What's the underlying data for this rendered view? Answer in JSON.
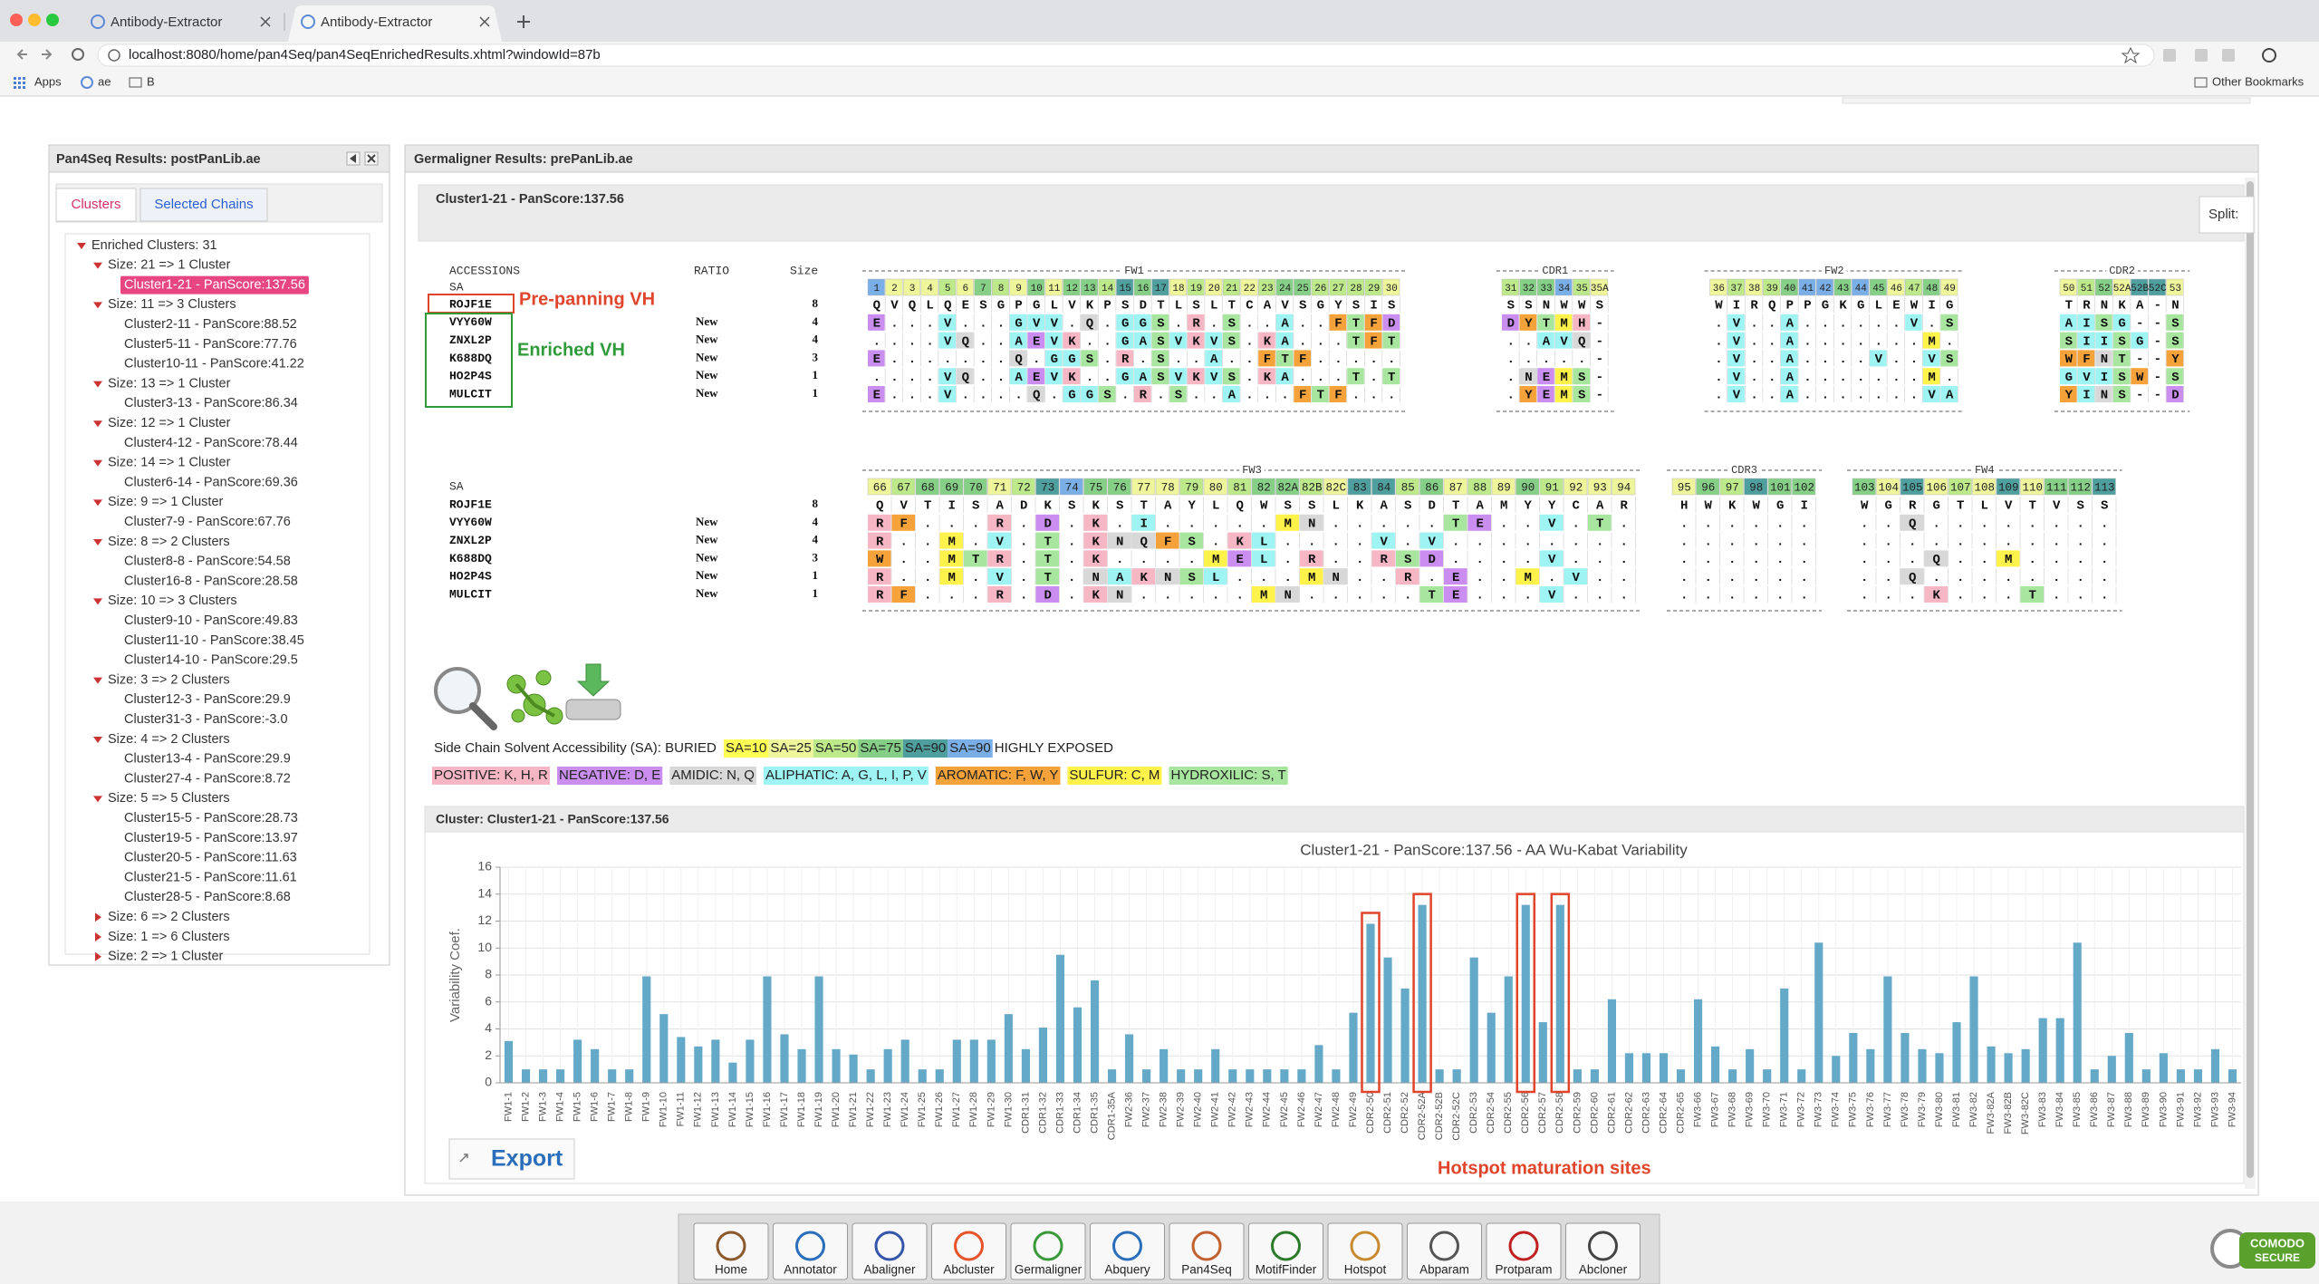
{
  "browser": {
    "tabs": [
      "Antibody-Extractor",
      "Antibody-Extractor"
    ],
    "url": "localhost:8080/home/pan4Seq/pan4SeqEnrichedResults.xhtml?windowId=87b",
    "bookmarks": [
      "Apps",
      "ae",
      "B"
    ],
    "other_bookmarks": "Other Bookmarks"
  },
  "left_panel": {
    "title": "Pan4Seq Results: postPanLib.ae",
    "tabs": [
      "Clusters",
      "Selected Chains"
    ],
    "tree": {
      "root": "Enriched Clusters: 31",
      "groups": [
        {
          "label": "Size: 21 => 1 Cluster",
          "children": [
            "Cluster1-21 - PanScore:137.56"
          ]
        },
        {
          "label": "Size: 11 => 3 Clusters",
          "children": [
            "Cluster2-11 - PanScore:88.52",
            "Cluster5-11 - PanScore:77.76",
            "Cluster10-11 - PanScore:41.22"
          ]
        },
        {
          "label": "Size: 13 => 1 Cluster",
          "children": [
            "Cluster3-13 - PanScore:86.34"
          ]
        },
        {
          "label": "Size: 12 => 1 Cluster",
          "children": [
            "Cluster4-12 - PanScore:78.44"
          ]
        },
        {
          "label": "Size: 14 => 1 Cluster",
          "children": [
            "Cluster6-14 - PanScore:69.36"
          ]
        },
        {
          "label": "Size: 9 => 1 Cluster",
          "children": [
            "Cluster7-9 - PanScore:67.76"
          ]
        },
        {
          "label": "Size: 8 => 2 Clusters",
          "children": [
            "Cluster8-8 - PanScore:54.58",
            "Cluster16-8 - PanScore:28.58"
          ]
        },
        {
          "label": "Size: 10 => 3 Clusters",
          "children": [
            "Cluster9-10 - PanScore:49.83",
            "Cluster11-10 - PanScore:38.45",
            "Cluster14-10 - PanScore:29.5"
          ]
        },
        {
          "label": "Size: 3 => 2 Clusters",
          "children": [
            "Cluster12-3 - PanScore:29.9",
            "Cluster31-3 - PanScore:-3.0"
          ]
        },
        {
          "label": "Size: 4 => 2 Clusters",
          "children": [
            "Cluster13-4 - PanScore:29.9",
            "Cluster27-4 - PanScore:8.72"
          ]
        },
        {
          "label": "Size: 5 => 5 Clusters",
          "children": [
            "Cluster15-5 - PanScore:28.73",
            "Cluster19-5 - PanScore:13.97",
            "Cluster20-5 - PanScore:11.63",
            "Cluster21-5 - PanScore:11.61",
            "Cluster28-5 - PanScore:8.68"
          ]
        },
        {
          "label": "Size: 6 => 2 Clusters",
          "children": []
        },
        {
          "label": "Size: 1 => 6 Clusters",
          "children": []
        },
        {
          "label": "Size: 2 => 1 Cluster",
          "children": []
        }
      ]
    }
  },
  "right_panel": {
    "title": "Germaligner Results: prePanLib.ae",
    "cluster_title": "Cluster1-21 - PanScore:137.56",
    "split": "Split:",
    "alignment": {
      "headers": [
        "ACCESSIONS",
        "RATIO",
        "Size"
      ],
      "sa_label": "SA",
      "blocks": [
        {
          "regions": [
            {
              "name": "FW1",
              "positions": [
                1,
                2,
                3,
                4,
                5,
                6,
                7,
                8,
                9,
                10,
                11,
                12,
                13,
                14,
                15,
                16,
                17,
                18,
                19,
                20,
                21,
                22,
                23,
                24,
                25,
                26,
                27,
                28,
                29,
                30
              ]
            },
            {
              "name": "CDR1",
              "positions": [
                31,
                32,
                33,
                34,
                35,
                "35A"
              ]
            },
            {
              "name": "FW2",
              "positions": [
                36,
                37,
                38,
                39,
                40,
                41,
                42,
                43,
                44,
                45,
                46,
                47,
                48,
                49
              ]
            },
            {
              "name": "CDR2",
              "positions": [
                50,
                51,
                52,
                "52A",
                "52B",
                "52C",
                53
              ]
            }
          ],
          "sa": [
            5,
            1,
            1,
            1,
            2,
            1,
            3,
            2,
            1,
            3,
            1,
            3,
            3,
            2,
            4,
            3,
            4,
            1,
            2,
            1,
            2,
            1,
            2,
            3,
            3,
            2,
            2,
            2,
            2,
            1,
            2,
            3,
            3,
            5,
            2,
            1,
            1,
            2,
            1,
            2,
            3,
            5,
            5,
            3,
            5,
            3,
            1,
            2,
            3,
            1,
            1,
            2,
            3,
            1,
            4,
            4,
            1
          ],
          "rows": [
            {
              "accession": "ROJF1E",
              "size": 8,
              "segments": [
                "QVQLQESGPGLVKPSDTLSLTCAVSGYSIS",
                "SSNWWS",
                "WIRQPPGKGLEWIG",
                "TRNKA-N"
              ]
            },
            {
              "accession": "VYY60W",
              "ratio": "New",
              "size": 4,
              "segments": [
                "E...V...GVV.Q.GGS.R.S..A..FTFD",
                "DYTMH-",
                ".V..A......V.S",
                "AISG--S"
              ]
            },
            {
              "accession": "ZNXL2P",
              "ratio": "New",
              "size": 4,
              "segments": [
                "....VQ..AEVK..GASVKVS.KA...TFT",
                "..AVQ-",
                ".V..A.......M.",
                "SIISG-S"
              ]
            },
            {
              "accession": "K688DQ",
              "ratio": "New",
              "size": 3,
              "segments": [
                "E.......Q.GGS.R.S..A..FTF.....",
                ".....-",
                ".V..A....V..VS",
                "WFNT--Y"
              ]
            },
            {
              "accession": "HO2P4S",
              "ratio": "New",
              "size": 1,
              "segments": [
                "....VQ..AEVK..GASVKVS.KA...T.T",
                ".NEMS-",
                ".V..A.......M.",
                "GVISW-S"
              ]
            },
            {
              "accession": "MULCIT",
              "ratio": "New",
              "size": 1,
              "segments": [
                "E...V....Q.GGS.R.S..A...FTF...",
                ".YEMS-",
                ".V..A.......VA",
                "YINS--D"
              ]
            }
          ]
        },
        {
          "regions": [
            {
              "name": "FW3",
              "positions": [
                66,
                67,
                68,
                69,
                70,
                71,
                72,
                73,
                74,
                75,
                76,
                77,
                78,
                79,
                80,
                81,
                82,
                "82A",
                "82B",
                "82C",
                83,
                84,
                85,
                86,
                87,
                88,
                89,
                90,
                91,
                92,
                93,
                94
              ]
            },
            {
              "name": "CDR3",
              "positions": [
                95,
                96,
                97,
                98,
                101,
                102
              ]
            },
            {
              "name": "FW4",
              "positions": [
                103,
                104,
                105,
                106,
                107,
                108,
                109,
                110,
                111,
                112,
                113
              ]
            }
          ],
          "sa": [
            1,
            2,
            3,
            3,
            3,
            1,
            2,
            4,
            5,
            3,
            3,
            1,
            1,
            2,
            1,
            2,
            3,
            3,
            2,
            1,
            4,
            4,
            2,
            3,
            1,
            2,
            1,
            3,
            2,
            1,
            1,
            1,
            1,
            3,
            2,
            4,
            3,
            3,
            3,
            1,
            4,
            1,
            2,
            1,
            4,
            1,
            3,
            3,
            4
          ],
          "rows": [
            {
              "accession": "ROJF1E",
              "size": 8,
              "segments": [
                "QVTISADKSKSTAYLQWSSLKASDTAMYYCAR",
                "HWKWGI",
                "WGRGTLVTVSS"
              ]
            },
            {
              "accession": "VYY60W",
              "ratio": "New",
              "size": 4,
              "segments": [
                "RF...R.D.K.I.....MN.....TE..V.T.",
                "......",
                "..Q........"
              ]
            },
            {
              "accession": "ZNXL2P",
              "ratio": "New",
              "size": 4,
              "segments": [
                "R..M.V.T.KNQFS.KL....V.V........",
                "......",
                "..........."
              ]
            },
            {
              "accession": "K688DQ",
              "ratio": "New",
              "size": 3,
              "segments": [
                "W..MTR.T.K....MEL.R..RSD....V...",
                "......",
                "...Q..M...."
              ]
            },
            {
              "accession": "HO2P4S",
              "ratio": "New",
              "size": 1,
              "segments": [
                "R..M.V.T.NAKNSL...MN..R.E..M.V..",
                "......",
                "..Q........"
              ]
            },
            {
              "accession": "MULCIT",
              "ratio": "New",
              "size": 1,
              "segments": [
                "RF...R.D.KN.....MN.....TE...V...",
                "......",
                "...K...T..."
              ]
            }
          ]
        }
      ],
      "annotations": {
        "pre_panning": "Pre-panning VH",
        "enriched": "Enriched VH"
      }
    },
    "sa_legend": {
      "prefix": "Side Chain Solvent Accessibility (SA): BURIED",
      "levels": [
        {
          "label": "SA=10",
          "color": "#ffff55"
        },
        {
          "label": "SA=25",
          "color": "#eef59a"
        },
        {
          "label": "SA=50",
          "color": "#bde98a"
        },
        {
          "label": "SA=75",
          "color": "#86cf86"
        },
        {
          "label": "SA=90",
          "color": "#4f9f9f"
        },
        {
          "label": "SA=90",
          "color": "#7aaee6"
        }
      ],
      "suffix": "HIGHLY EXPOSED"
    },
    "class_legend": [
      {
        "label": "POSITIVE: K, H, R",
        "color": "#f7b6c4"
      },
      {
        "label": "NEGATIVE: D, E",
        "color": "#c98ef0"
      },
      {
        "label": "AMIDIC: N, Q",
        "color": "#d8d8d8"
      },
      {
        "label": "ALIPHATIC: A, G, L, I, P, V",
        "color": "#9ef3f3"
      },
      {
        "label": "AROMATIC: F, W, Y",
        "color": "#f5a23a"
      },
      {
        "label": "SULFUR: C, M",
        "color": "#fff24a"
      },
      {
        "label": "HYDROXILIC: S, T",
        "color": "#a8e6a0"
      }
    ],
    "chart_panel_title": "Cluster: Cluster1-21 - PanScore:137.56",
    "export": "Export",
    "hotspot_note": "Hotspot maturation sites"
  },
  "variability_chart": {
    "type": "bar",
    "title": "Cluster1-21 - PanScore:137.56 - AA Wu-Kabat Variability",
    "y_label": "Variability Coef.",
    "color": "#65a9c8",
    "grid": true,
    "ylim": [
      0,
      16
    ],
    "yticks": [
      0,
      2,
      4,
      6,
      8,
      10,
      12,
      14,
      16
    ],
    "categories": [
      "FW1-1",
      "FW1-2",
      "FW1-3",
      "FW1-4",
      "FW1-5",
      "FW1-6",
      "FW1-7",
      "FW1-8",
      "FW1-9",
      "FW1-10",
      "FW1-11",
      "FW1-12",
      "FW1-13",
      "FW1-14",
      "FW1-15",
      "FW1-16",
      "FW1-17",
      "FW1-18",
      "FW1-19",
      "FW1-20",
      "FW1-21",
      "FW1-22",
      "FW1-23",
      "FW1-24",
      "FW1-25",
      "FW1-26",
      "FW1-27",
      "FW1-28",
      "FW1-29",
      "FW1-30",
      "CDR1-31",
      "CDR1-32",
      "CDR1-33",
      "CDR1-34",
      "CDR1-35",
      "CDR1-35A",
      "FW2-36",
      "FW2-37",
      "FW2-38",
      "FW2-39",
      "FW2-40",
      "FW2-41",
      "FW2-42",
      "FW2-43",
      "FW2-44",
      "FW2-45",
      "FW2-46",
      "FW2-47",
      "FW2-48",
      "FW2-49",
      "CDR2-50",
      "CDR2-51",
      "CDR2-52",
      "CDR2-52A",
      "CDR2-52B",
      "CDR2-52C",
      "CDR2-53",
      "CDR2-54",
      "CDR2-55",
      "CDR2-56",
      "CDR2-57",
      "CDR2-58",
      "CDR2-59",
      "CDR2-60",
      "CDR2-61",
      "CDR2-62",
      "CDR2-63",
      "CDR2-64",
      "CDR2-65",
      "FW3-66",
      "FW3-67",
      "FW3-68",
      "FW3-69",
      "FW3-70",
      "FW3-71",
      "FW3-72",
      "FW3-73",
      "FW3-74",
      "FW3-75",
      "FW3-76",
      "FW3-77",
      "FW3-78",
      "FW3-79",
      "FW3-80",
      "FW3-81",
      "FW3-82",
      "FW3-82A",
      "FW3-82B",
      "FW3-82C",
      "FW3-83",
      "FW3-84",
      "FW3-85",
      "FW3-86",
      "FW3-87",
      "FW3-88",
      "FW3-89",
      "FW3-90",
      "FW3-91",
      "FW3-92",
      "FW3-93",
      "FW3-94"
    ],
    "values": [
      3.1,
      1,
      1,
      1,
      3.2,
      2.5,
      1,
      1,
      7.9,
      5.1,
      3.4,
      2.7,
      3.2,
      1.5,
      3.2,
      7.9,
      3.6,
      2.5,
      7.9,
      2.5,
      2.1,
      1,
      2.5,
      3.2,
      1,
      1,
      3.2,
      3.2,
      3.2,
      5.1,
      2.5,
      4.1,
      9.5,
      5.6,
      7.6,
      1,
      3.6,
      1,
      2.5,
      1,
      1,
      2.5,
      1,
      1,
      1,
      1,
      1,
      2.8,
      1,
      5.2,
      11.8,
      9.3,
      7,
      13.2,
      1,
      1,
      9.3,
      5.2,
      7.9,
      13.2,
      4.5,
      13.2,
      1,
      1,
      6.2,
      2.2,
      2.2,
      2.2,
      1,
      6.2,
      2.7,
      1,
      2.5,
      1,
      7,
      1,
      10.4,
      2,
      3.7,
      2.5,
      7.9,
      3.7,
      2.5,
      2.2,
      4.5,
      7.9,
      2.7,
      2.2,
      2.5,
      4.8,
      4.8,
      10.4,
      1,
      2,
      3.7,
      1,
      2.2,
      1,
      1,
      2.5,
      1
    ]
  },
  "toolbar": [
    "Home",
    "Annotator",
    "Abaligner",
    "Abcluster",
    "Germaligner",
    "Abquery",
    "Pan4Seq",
    "MotifFinder",
    "Hotspot",
    "Abparam",
    "Protparam",
    "Abcloner"
  ],
  "badge": [
    "COMODO",
    "SECURE"
  ]
}
